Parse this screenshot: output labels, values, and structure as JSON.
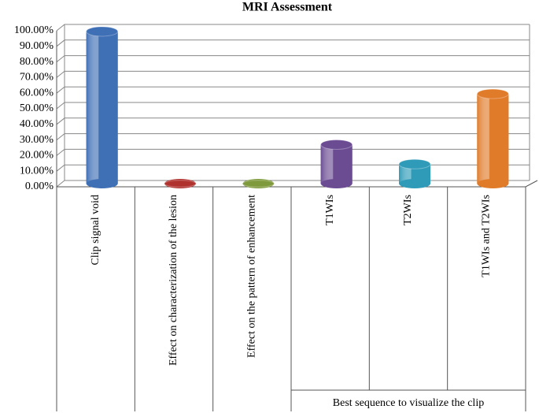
{
  "chart_data": {
    "type": "bar3d",
    "title": "MRI Assessment",
    "categories": [
      "Clip signal void",
      "Effect on characterization  of the lesion",
      "Effect on the pattern of enhancement",
      "T1WIs",
      "T2WIs",
      "T1WIs and T2WIs"
    ],
    "values": [
      97.5,
      0,
      0,
      25,
      12.5,
      57.5
    ],
    "colors": [
      "#3f6fb5",
      "#b0322f",
      "#7f9a3c",
      "#6b4c93",
      "#2f9bb8",
      "#e07b2a"
    ],
    "group_label": "Best sequence to visualize the clip",
    "ylim": [
      0,
      100
    ],
    "yticks": [
      {
        "value": 0,
        "label": "0.00%"
      },
      {
        "value": 10,
        "label": "10.00%"
      },
      {
        "value": 20,
        "label": "20.00%"
      },
      {
        "value": 30,
        "label": "30.00%"
      },
      {
        "value": 40,
        "label": "40.00%"
      },
      {
        "value": 50,
        "label": "50.00%"
      },
      {
        "value": 60,
        "label": "60.00%"
      },
      {
        "value": 70,
        "label": "70.00%"
      },
      {
        "value": 80,
        "label": "80.00%"
      },
      {
        "value": 90,
        "label": "90.00%"
      },
      {
        "value": 100,
        "label": "100.00%"
      }
    ],
    "grid": true
  }
}
